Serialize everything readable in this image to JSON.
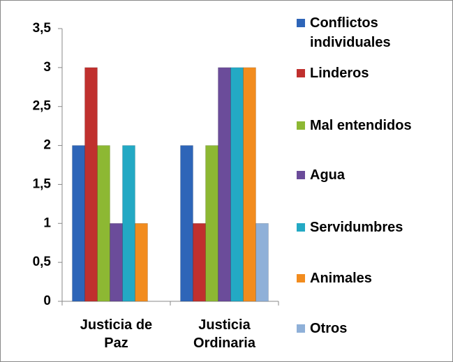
{
  "chart_data": {
    "type": "bar",
    "categories": [
      "Justicia de Paz",
      "Justicia Ordinaria"
    ],
    "series": [
      {
        "name": "Conflictos individuales",
        "color": "#2e65b8",
        "values": [
          2,
          2
        ]
      },
      {
        "name": "Linderos",
        "color": "#c0302e",
        "values": [
          3,
          1
        ]
      },
      {
        "name": "Mal entendidos",
        "color": "#8db833",
        "values": [
          2,
          2
        ]
      },
      {
        "name": "Agua",
        "color": "#6b4c9a",
        "values": [
          1,
          3
        ]
      },
      {
        "name": "Servidumbres",
        "color": "#23a9c4",
        "values": [
          2,
          3
        ]
      },
      {
        "name": "Animales",
        "color": "#f28c1e",
        "values": [
          1,
          3
        ]
      },
      {
        "name": "Otros",
        "color": "#8fb0d8",
        "values": [
          0,
          1
        ]
      }
    ],
    "ylim": [
      0,
      3.5
    ],
    "yticks": [
      0,
      {
        "value": 0.5,
        "label": "0,5"
      },
      1,
      {
        "value": 1.5,
        "label": "1,5"
      },
      2,
      {
        "value": 2.5,
        "label": "2,5"
      },
      3,
      {
        "value": 3.5,
        "label": "3,5"
      }
    ],
    "grid": false
  }
}
